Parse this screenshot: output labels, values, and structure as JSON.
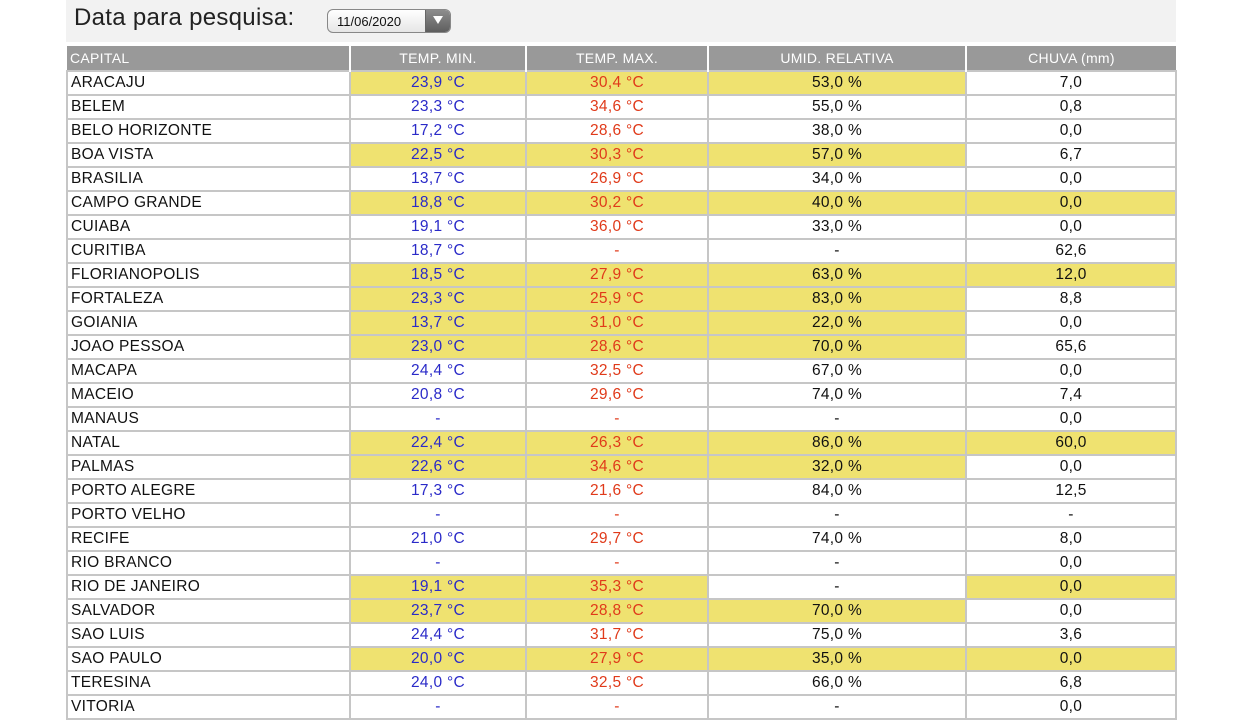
{
  "search": {
    "label": "Data para pesquisa:",
    "date": "11/06/2020"
  },
  "table": {
    "headers": [
      "CAPITAL",
      "TEMP. MIN.",
      "TEMP. MAX.",
      "UMID. RELATIVA",
      "CHUVA (mm)"
    ],
    "highlight_color": "#efe270",
    "min_color": "#2a2ac8",
    "max_color": "#e03a1a",
    "rows": [
      {
        "capital": "ARACAJU",
        "min": "23,9 °C",
        "max": "30,4 °C",
        "hum": "53,0 %",
        "rain": "7,0",
        "hl": [
          1,
          1,
          1,
          0
        ]
      },
      {
        "capital": "BELEM",
        "min": "23,3 °C",
        "max": "34,6 °C",
        "hum": "55,0 %",
        "rain": "0,8",
        "hl": [
          0,
          0,
          0,
          0
        ]
      },
      {
        "capital": "BELO HORIZONTE",
        "min": "17,2 °C",
        "max": "28,6 °C",
        "hum": "38,0 %",
        "rain": "0,0",
        "hl": [
          0,
          0,
          0,
          0
        ]
      },
      {
        "capital": "BOA VISTA",
        "min": "22,5 °C",
        "max": "30,3 °C",
        "hum": "57,0 %",
        "rain": "6,7",
        "hl": [
          1,
          1,
          1,
          0
        ]
      },
      {
        "capital": "BRASILIA",
        "min": "13,7 °C",
        "max": "26,9 °C",
        "hum": "34,0 %",
        "rain": "0,0",
        "hl": [
          0,
          0,
          0,
          0
        ]
      },
      {
        "capital": "CAMPO GRANDE",
        "min": "18,8 °C",
        "max": "30,2 °C",
        "hum": "40,0 %",
        "rain": "0,0",
        "hl": [
          1,
          1,
          1,
          1
        ]
      },
      {
        "capital": "CUIABA",
        "min": "19,1 °C",
        "max": "36,0 °C",
        "hum": "33,0 %",
        "rain": "0,0",
        "hl": [
          0,
          0,
          0,
          0
        ]
      },
      {
        "capital": "CURITIBA",
        "min": "18,7 °C",
        "max": "-",
        "hum": "-",
        "rain": "62,6",
        "hl": [
          0,
          0,
          0,
          0
        ]
      },
      {
        "capital": "FLORIANOPOLIS",
        "min": "18,5 °C",
        "max": "27,9 °C",
        "hum": "63,0 %",
        "rain": "12,0",
        "hl": [
          1,
          1,
          1,
          1
        ]
      },
      {
        "capital": "FORTALEZA",
        "min": "23,3 °C",
        "max": "25,9 °C",
        "hum": "83,0 %",
        "rain": "8,8",
        "hl": [
          1,
          1,
          1,
          0
        ]
      },
      {
        "capital": "GOIANIA",
        "min": "13,7 °C",
        "max": "31,0 °C",
        "hum": "22,0 %",
        "rain": "0,0",
        "hl": [
          1,
          1,
          1,
          0
        ]
      },
      {
        "capital": "JOAO PESSOA",
        "min": "23,0 °C",
        "max": "28,6 °C",
        "hum": "70,0 %",
        "rain": "65,6",
        "hl": [
          1,
          1,
          1,
          0
        ]
      },
      {
        "capital": "MACAPA",
        "min": "24,4 °C",
        "max": "32,5 °C",
        "hum": "67,0 %",
        "rain": "0,0",
        "hl": [
          0,
          0,
          0,
          0
        ]
      },
      {
        "capital": "MACEIO",
        "min": "20,8 °C",
        "max": "29,6 °C",
        "hum": "74,0 %",
        "rain": "7,4",
        "hl": [
          0,
          0,
          0,
          0
        ]
      },
      {
        "capital": "MANAUS",
        "min": "-",
        "max": "-",
        "hum": "-",
        "rain": "0,0",
        "hl": [
          0,
          0,
          0,
          0
        ]
      },
      {
        "capital": "NATAL",
        "min": "22,4 °C",
        "max": "26,3 °C",
        "hum": "86,0 %",
        "rain": "60,0",
        "hl": [
          1,
          1,
          1,
          1
        ]
      },
      {
        "capital": "PALMAS",
        "min": "22,6 °C",
        "max": "34,6 °C",
        "hum": "32,0 %",
        "rain": "0,0",
        "hl": [
          1,
          1,
          1,
          0
        ]
      },
      {
        "capital": "PORTO ALEGRE",
        "min": "17,3 °C",
        "max": "21,6 °C",
        "hum": "84,0 %",
        "rain": "12,5",
        "hl": [
          0,
          0,
          0,
          0
        ]
      },
      {
        "capital": "PORTO VELHO",
        "min": "-",
        "max": "-",
        "hum": "-",
        "rain": "-",
        "hl": [
          0,
          0,
          0,
          0
        ]
      },
      {
        "capital": "RECIFE",
        "min": "21,0 °C",
        "max": "29,7 °C",
        "hum": "74,0 %",
        "rain": "8,0",
        "hl": [
          0,
          0,
          0,
          0
        ]
      },
      {
        "capital": "RIO BRANCO",
        "min": "-",
        "max": "-",
        "hum": "-",
        "rain": "0,0",
        "hl": [
          0,
          0,
          0,
          0
        ]
      },
      {
        "capital": "RIO DE JANEIRO",
        "min": "19,1 °C",
        "max": "35,3 °C",
        "hum": "-",
        "rain": "0,0",
        "hl": [
          1,
          1,
          0,
          1
        ]
      },
      {
        "capital": "SALVADOR",
        "min": "23,7 °C",
        "max": "28,8 °C",
        "hum": "70,0 %",
        "rain": "0,0",
        "hl": [
          1,
          1,
          1,
          0
        ]
      },
      {
        "capital": "SAO LUIS",
        "min": "24,4 °C",
        "max": "31,7 °C",
        "hum": "75,0 %",
        "rain": "3,6",
        "hl": [
          0,
          0,
          0,
          0
        ]
      },
      {
        "capital": "SAO PAULO",
        "min": "20,0 °C",
        "max": "27,9 °C",
        "hum": "35,0 %",
        "rain": "0,0",
        "hl": [
          1,
          1,
          1,
          1
        ]
      },
      {
        "capital": "TERESINA",
        "min": "24,0 °C",
        "max": "32,5 °C",
        "hum": "66,0 %",
        "rain": "6,8",
        "hl": [
          0,
          0,
          0,
          0
        ]
      },
      {
        "capital": "VITORIA",
        "min": "-",
        "max": "-",
        "hum": "-",
        "rain": "0,0",
        "hl": [
          0,
          0,
          0,
          0
        ]
      }
    ]
  }
}
